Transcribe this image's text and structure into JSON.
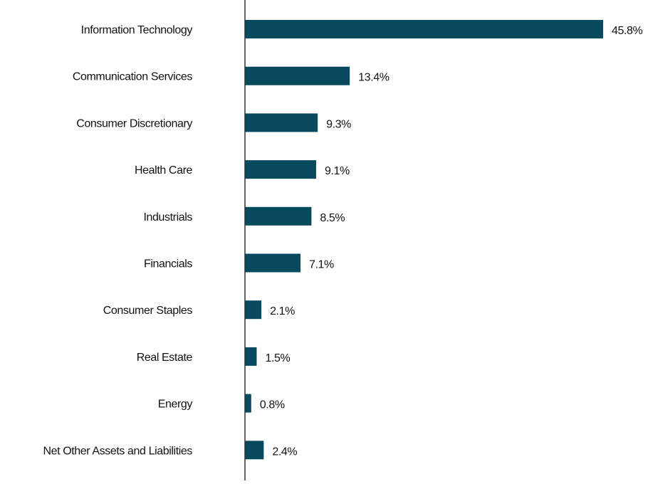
{
  "chart_data": {
    "type": "bar",
    "orientation": "horizontal",
    "categories": [
      "Information Technology",
      "Communication Services",
      "Consumer Discretionary",
      "Health Care",
      "Industrials",
      "Financials",
      "Consumer Staples",
      "Real Estate",
      "Energy",
      "Net Other Assets and Liabilities"
    ],
    "values": [
      45.8,
      13.4,
      9.3,
      9.1,
      8.5,
      7.1,
      2.1,
      1.5,
      0.8,
      2.4
    ],
    "data_labels": [
      "45.8%",
      "13.4%",
      "9.3%",
      "9.1%",
      "8.5%",
      "7.1%",
      "2.1%",
      "1.5%",
      "0.8%",
      "2.4%"
    ],
    "xlim": [
      0,
      51.5
    ],
    "grid": false,
    "legend": "none",
    "bar_color": "#07495D"
  }
}
